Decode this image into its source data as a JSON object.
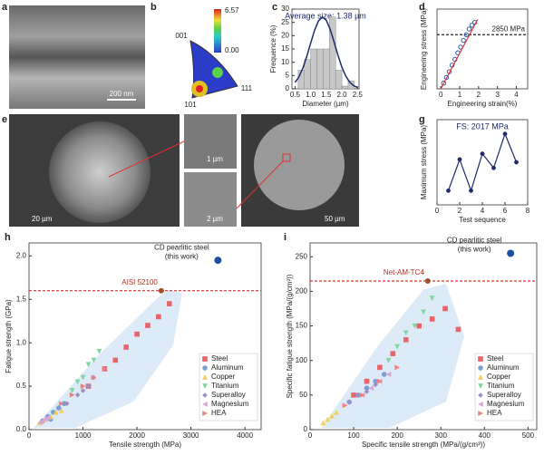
{
  "figure": {
    "images": [
      {
        "label": "a",
        "scale_bar": "200 nm"
      },
      {
        "label": "b",
        "max": "6.57",
        "min": "0.00",
        "poles": [
          "001",
          "101",
          "111"
        ]
      },
      {
        "label": "e",
        "scale_bars": [
          "20 µm",
          "1 µm",
          "2 µm"
        ]
      },
      {
        "label": "f",
        "scale_bar": "50 µm"
      }
    ]
  },
  "chart_data": [
    {
      "type": "histogram",
      "label": "c",
      "note": "Average size: 1.38 µm",
      "x_label": "Diameter (µm)",
      "y_label": "Frequence (%)",
      "bins": [
        0.6,
        0.8,
        1.0,
        1.2,
        1.4,
        1.6,
        1.8,
        2.0,
        2.2,
        2.4
      ],
      "values": [
        7,
        11,
        15,
        15,
        15,
        27,
        7,
        1,
        3
      ],
      "color": "#c8c8c8",
      "fit": {
        "color": "#1f2a6b",
        "x": [
          0.5,
          0.625,
          0.75,
          0.875,
          1.0,
          1.125,
          1.25,
          1.375,
          1.5,
          1.625,
          1.75,
          1.875,
          2.0,
          2.125,
          2.25,
          2.375,
          2.5
        ],
        "values": [
          2.4,
          4.5,
          7.8,
          12.2,
          17.2,
          22.0,
          25.6,
          27.0,
          25.8,
          22.4,
          17.6,
          12.6,
          8.1,
          4.8,
          2.5,
          1.2,
          0.5
        ]
      },
      "xlim": [
        0.4,
        2.55
      ],
      "ylim": [
        0,
        30
      ],
      "xticks": [
        0.5,
        {
          "value": 1,
          "label": "1.0"
        },
        1.5,
        {
          "value": 2,
          "label": "2.0"
        },
        2.5
      ],
      "yticks": [
        0,
        5,
        10,
        15,
        20,
        25,
        30
      ]
    },
    {
      "type": "scatter",
      "label": "d",
      "x_label": "Engineering strain(%)",
      "y_label": "Engineering stress (MPa)",
      "series": [
        {
          "color": "#2a5db0",
          "marker": "circle-open",
          "x": [
            0.15,
            0.3,
            0.45,
            0.6,
            0.75,
            0.9,
            1.05,
            1.2,
            1.35,
            1.5,
            1.65,
            1.8
          ],
          "values": [
            300,
            600,
            900,
            1250,
            1550,
            1900,
            2200,
            2550,
            2850,
            3150,
            3350,
            3500
          ]
        },
        {
          "color": "#e03030",
          "marker": "line",
          "x": [
            0,
            1.95
          ],
          "values": [
            0,
            3650
          ]
        }
      ],
      "ref": {
        "y": 2850,
        "label": "2850 MPa",
        "color": "#222222"
      },
      "xlim": [
        -0.2,
        4.6
      ],
      "ylim": [
        0,
        4200
      ],
      "xticks": [
        0,
        1,
        2,
        3,
        4
      ],
      "yticks": []
    },
    {
      "type": "line",
      "label": "g",
      "note": "FS: 2017 MPa",
      "x_label": "Test sequence",
      "y_label": "Maximum stress (MPa)",
      "series": [
        {
          "color": "#1f2a6b",
          "marker": "circle",
          "x": [
            1,
            2,
            3,
            4,
            5,
            6,
            7
          ],
          "values": [
            1900,
            2010,
            1900,
            2030,
            1980,
            2100,
            2000
          ]
        }
      ],
      "xlim": [
        0,
        8
      ],
      "ylim": [
        1850,
        2150
      ],
      "xticks": [
        0,
        2,
        4,
        6,
        8
      ],
      "yticks": []
    },
    {
      "type": "scatter",
      "label": "h",
      "x_label": "Tensile strength (MPa)",
      "y_label": "Fatigue strength (GPa)",
      "legend": "lower right",
      "series": [
        {
          "name": "Steel",
          "color": "#e8636a",
          "marker": "square",
          "x": [
            1100,
            1400,
            1600,
            1800,
            2000,
            2200,
            2400,
            2600
          ],
          "values": [
            0.5,
            0.7,
            0.8,
            0.95,
            1.1,
            1.2,
            1.3,
            1.45
          ]
        },
        {
          "name": "Aluminum",
          "color": "#7b9fd4",
          "marker": "circle",
          "x": [
            250,
            350,
            450,
            550,
            650,
            400
          ],
          "values": [
            0.1,
            0.15,
            0.2,
            0.25,
            0.3,
            0.12
          ]
        },
        {
          "name": "Copper",
          "color": "#f2cf5b",
          "marker": "triangle-up",
          "x": [
            200,
            300,
            400,
            500,
            600
          ],
          "values": [
            0.08,
            0.12,
            0.15,
            0.2,
            0.22
          ]
        },
        {
          "name": "Titanium",
          "color": "#7fd6a4",
          "marker": "triangle-down",
          "x": [
            800,
            900,
            1000,
            1100,
            1200,
            1300
          ],
          "values": [
            0.45,
            0.55,
            0.6,
            0.75,
            0.8,
            0.9
          ]
        },
        {
          "name": "Superalloy",
          "color": "#9c8fc4",
          "marker": "diamond",
          "x": [
            700,
            900,
            1000,
            1100,
            1200
          ],
          "values": [
            0.3,
            0.4,
            0.45,
            0.5,
            0.6
          ]
        },
        {
          "name": "Magnesium",
          "color": "#d9a7cf",
          "marker": "triangle-left",
          "x": [
            200,
            250,
            300,
            350
          ],
          "values": [
            0.08,
            0.1,
            0.12,
            0.14
          ]
        },
        {
          "name": "HEA",
          "color": "#f08080",
          "marker": "triangle-right",
          "x": [
            600,
            800,
            1000,
            1200,
            1400
          ],
          "values": [
            0.3,
            0.4,
            0.5,
            0.6,
            0.7
          ]
        }
      ],
      "ref": {
        "y": 1.6,
        "x": 2450,
        "label": "AISI 52100",
        "color": "#e03030"
      },
      "highlight": {
        "x": 3500,
        "y": 1.95,
        "color": "#1f4fa0",
        "label": [
          "CD pearlitic steel",
          "(this work)"
        ]
      },
      "xlim": [
        0,
        4300
      ],
      "ylim": [
        0,
        2.15
      ],
      "xticks": [
        0,
        1000,
        2000,
        3000,
        4000
      ],
      "yticks": [
        {
          "value": 0,
          "label": "0.0"
        },
        0.5,
        {
          "value": 1,
          "label": "1.0"
        },
        1.5,
        {
          "value": 2,
          "label": "2.0"
        }
      ]
    },
    {
      "type": "scatter",
      "label": "i",
      "x_label": "Specific tensile strength (MPa/(g/cm³))",
      "y_label": "Specific fatigue strength (MPa/(g/cm³))",
      "legend": "lower right",
      "series": [
        {
          "name": "Steel",
          "color": "#e8636a",
          "marker": "square",
          "x": [
            100,
            130,
            160,
            190,
            220,
            250,
            280,
            310,
            340
          ],
          "values": [
            50,
            70,
            90,
            110,
            130,
            150,
            160,
            175,
            145
          ]
        },
        {
          "name": "Aluminum",
          "color": "#7b9fd4",
          "marker": "circle",
          "x": [
            90,
            110,
            130,
            150,
            170
          ],
          "values": [
            40,
            50,
            60,
            70,
            80
          ]
        },
        {
          "name": "Copper",
          "color": "#f2cf5b",
          "marker": "triangle-up",
          "x": [
            30,
            40,
            50,
            60
          ],
          "values": [
            10,
            15,
            20,
            25
          ]
        },
        {
          "name": "Titanium",
          "color": "#7fd6a4",
          "marker": "triangle-down",
          "x": [
            180,
            200,
            220,
            240,
            260,
            280
          ],
          "values": [
            100,
            120,
            140,
            150,
            170,
            190
          ]
        },
        {
          "name": "Superalloy",
          "color": "#9c8fc4",
          "marker": "diamond",
          "x": [
            90,
            110,
            130,
            150
          ],
          "values": [
            40,
            50,
            55,
            65
          ]
        },
        {
          "name": "Magnesium",
          "color": "#d9a7cf",
          "marker": "triangle-left",
          "x": [
            120,
            140,
            160,
            180
          ],
          "values": [
            50,
            60,
            70,
            80
          ]
        },
        {
          "name": "HEA",
          "color": "#f08080",
          "marker": "triangle-right",
          "x": [
            80,
            120,
            160,
            200
          ],
          "values": [
            35,
            50,
            70,
            90
          ]
        }
      ],
      "ref": {
        "y": 215,
        "x": 270,
        "label": "Net-AM-TC4",
        "color": "#e03030"
      },
      "highlight": {
        "x": 460,
        "y": 255,
        "color": "#1f4fa0",
        "label": [
          "CD pearlitic steel",
          "(this work)"
        ]
      },
      "xlim": [
        0,
        520
      ],
      "ylim": [
        0,
        270
      ],
      "xticks": [
        0,
        100,
        200,
        300,
        400,
        500
      ],
      "yticks": [
        0,
        50,
        100,
        150,
        200,
        250
      ]
    }
  ]
}
